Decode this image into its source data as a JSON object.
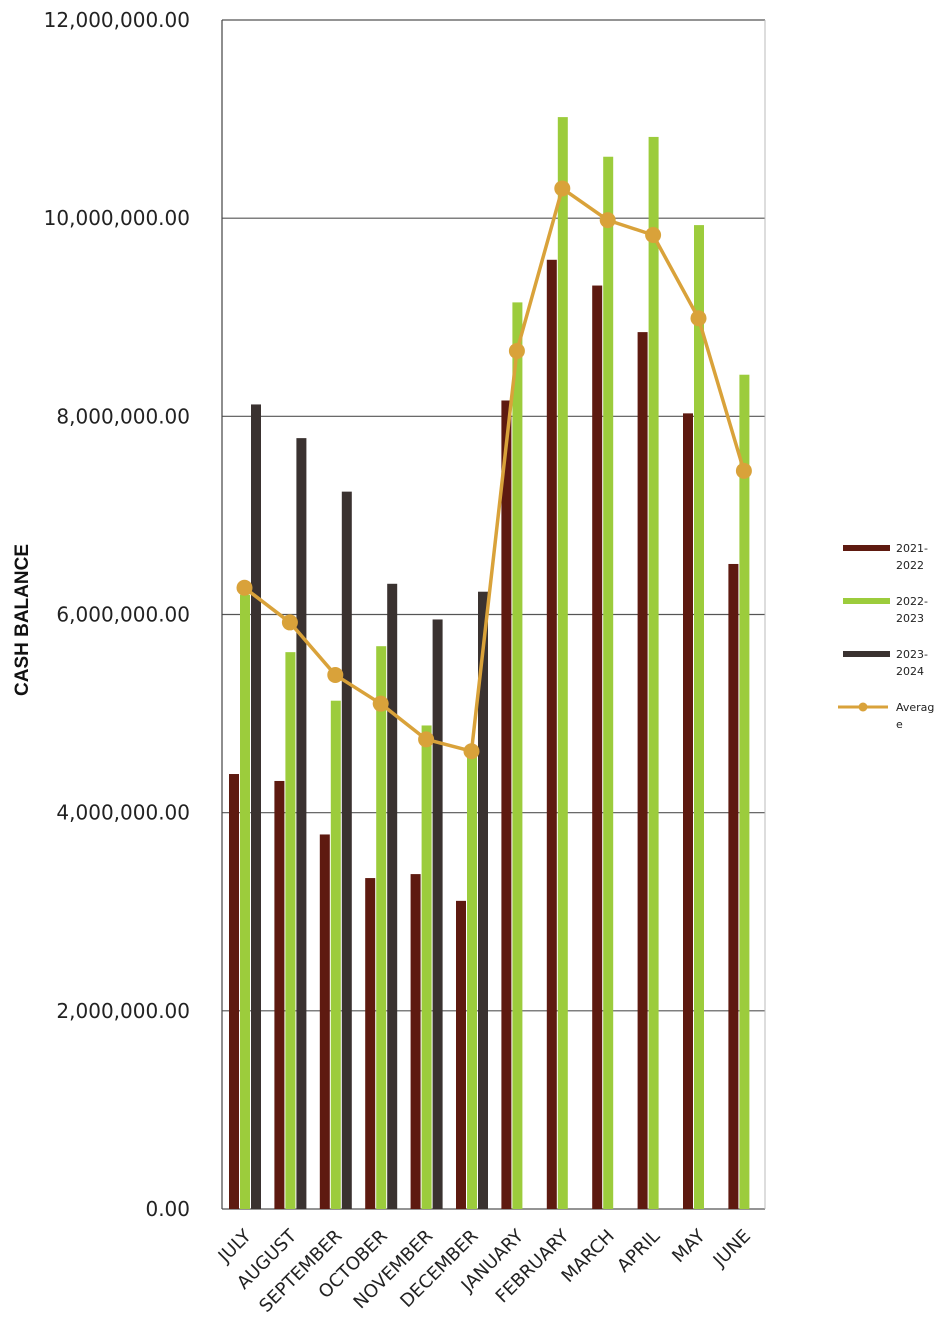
{
  "chart_data": {
    "type": "bar",
    "ylabel": "CASH BALANCE",
    "ylim": [
      0,
      12000000
    ],
    "yticks": [
      0,
      2000000,
      4000000,
      6000000,
      8000000,
      10000000,
      12000000
    ],
    "ytick_labels": [
      "0.00",
      "2,000,000.00",
      "4,000,000.00",
      "6,000,000.00",
      "8,000,000.00",
      "10,000,000.00",
      "12,000,000.00"
    ],
    "grid": true,
    "legend_position": "right",
    "categories": [
      "JULY",
      "AUGUST",
      "SEPTEMBER",
      "OCTOBER",
      "NOVEMBER",
      "DECEMBER",
      "JANUARY",
      "FEBRUARY",
      "MARCH",
      "APRIL",
      "MAY",
      "JUNE"
    ],
    "series": [
      {
        "name": "2021-2022",
        "legend_lines": [
          "2021-",
          "2022"
        ],
        "type": "bar",
        "color": "#5e1a10",
        "values": [
          4390000,
          4320000,
          3780000,
          3340000,
          3380000,
          3110000,
          8160000,
          9580000,
          9320000,
          8850000,
          8030000,
          6510000
        ]
      },
      {
        "name": "2022-2023",
        "legend_lines": [
          "2022-",
          "2023"
        ],
        "type": "bar",
        "color": "#9ccc3c",
        "values": [
          6200000,
          5620000,
          5130000,
          5680000,
          4880000,
          4650000,
          9150000,
          11020000,
          10620000,
          10820000,
          9930000,
          8420000
        ]
      },
      {
        "name": "2023-2024",
        "legend_lines": [
          "2023-",
          "2024"
        ],
        "type": "bar",
        "color": "#3a3230",
        "values": [
          8120000,
          7780000,
          7240000,
          6310000,
          5950000,
          6230000,
          null,
          null,
          null,
          null,
          null,
          null
        ]
      },
      {
        "name": "Average",
        "legend_lines": [
          "Averag",
          "e"
        ],
        "type": "line",
        "color": "#d9a23a",
        "values": [
          6270000,
          5920000,
          5390000,
          5100000,
          4740000,
          4620000,
          8660000,
          10300000,
          9980000,
          9830000,
          8990000,
          7450000
        ]
      }
    ]
  }
}
